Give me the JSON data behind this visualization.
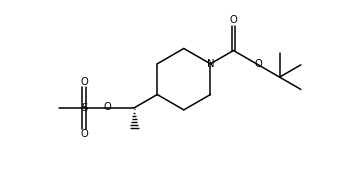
{
  "figsize": [
    3.54,
    1.72
  ],
  "dpi": 100,
  "bg_color": "#ffffff",
  "line_color": "#000000",
  "line_width": 1.1,
  "font_size": 7.2,
  "xlim": [
    0,
    10.0
  ],
  "ylim": [
    0,
    5.0
  ]
}
